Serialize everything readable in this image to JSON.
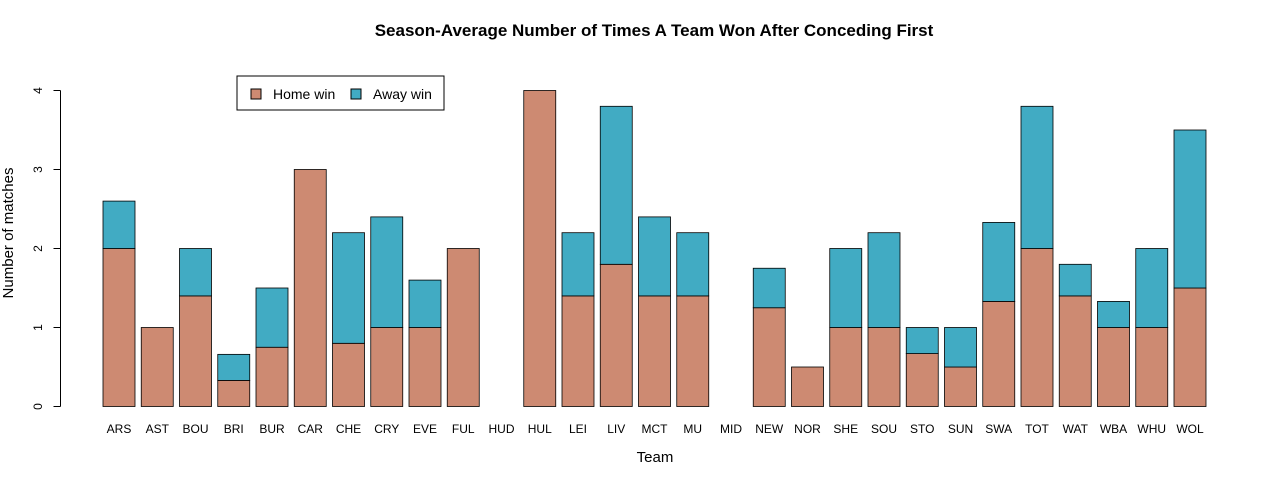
{
  "colors": {
    "home": "#CD8A72",
    "away": "#41ABC3"
  },
  "chart_data": {
    "type": "bar",
    "stacked": true,
    "title": "Season-Average Number of Times A Team Won After Conceding First",
    "xlabel": "Team",
    "ylabel": "Number of matches",
    "ylim": [
      0,
      4
    ],
    "yticks": [
      "0",
      "1",
      "2",
      "3",
      "4"
    ],
    "grid": false,
    "legend_position": "top-left",
    "categories": [
      "ARS",
      "AST",
      "BOU",
      "BRI",
      "BUR",
      "CAR",
      "CHE",
      "CRY",
      "EVE",
      "FUL",
      "HUD",
      "HUL",
      "LEI",
      "LIV",
      "MCT",
      "MU",
      "MID",
      "NEW",
      "NOR",
      "SHE",
      "SOU",
      "STO",
      "SUN",
      "SWA",
      "TOT",
      "WAT",
      "WBA",
      "WHU",
      "WOL"
    ],
    "series": [
      {
        "name": "Home win",
        "values": [
          2.0,
          1.0,
          1.4,
          0.33,
          0.75,
          3.0,
          0.8,
          1.0,
          1.0,
          2.0,
          0.0,
          4.0,
          1.4,
          1.8,
          1.4,
          1.4,
          0.0,
          1.25,
          0.5,
          1.0,
          1.0,
          0.67,
          0.5,
          1.33,
          2.0,
          1.4,
          1.0,
          1.0,
          1.5
        ]
      },
      {
        "name": "Away win",
        "values": [
          0.6,
          0.0,
          0.6,
          0.33,
          0.75,
          0.0,
          1.4,
          1.4,
          0.6,
          0.0,
          0.0,
          0.0,
          0.8,
          2.0,
          1.0,
          0.8,
          0.0,
          0.5,
          0.0,
          1.0,
          1.2,
          0.33,
          0.5,
          1.0,
          1.8,
          0.4,
          0.33,
          1.0,
          2.0
        ]
      }
    ]
  }
}
